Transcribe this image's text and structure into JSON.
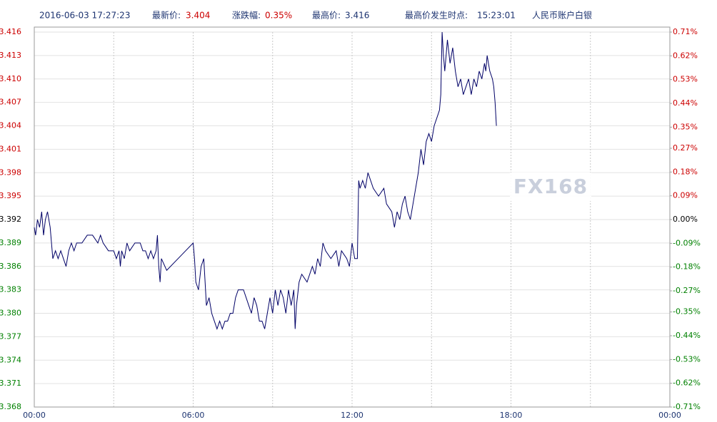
{
  "chart_data": {
    "type": "line",
    "header": {
      "timestamp": "2016-06-03 17:27:23",
      "latest_label": "最新价:",
      "latest_value": "3.404",
      "change_label": "涨跌幅:",
      "change_value": "0.35%",
      "high_label": "最高价:",
      "high_value": "3.416",
      "high_time_label": "最高价发生时点:",
      "high_time_value": "15:23:01",
      "instrument": "人民币账户白银"
    },
    "watermark": "FX168",
    "xlim": [
      0,
      24
    ],
    "xticks": [
      {
        "value": 0,
        "label": "00:00"
      },
      {
        "value": 3,
        "label": null
      },
      {
        "value": 6,
        "label": "06:00"
      },
      {
        "value": 9,
        "label": null
      },
      {
        "value": 12,
        "label": "12:00"
      },
      {
        "value": 15,
        "label": null
      },
      {
        "value": 18,
        "label": "18:00"
      },
      {
        "value": 21,
        "label": null
      },
      {
        "value": 24,
        "label": "00:00"
      }
    ],
    "ylim": [
      3.368,
      3.416
    ],
    "yticks": [
      3.368,
      3.371,
      3.374,
      3.377,
      {
        "value": 3.38,
        "label": "3.380"
      },
      3.383,
      3.386,
      3.389,
      3.392,
      3.395,
      3.398,
      3.401,
      3.404,
      3.407,
      {
        "value": 3.41,
        "label": "3.410"
      },
      3.413,
      3.416
    ],
    "y2lim": [
      -0.71,
      0.71
    ],
    "y2ticks": [
      {
        "value": -0.71,
        "label": "-0.71%"
      },
      {
        "value": -0.62,
        "label": "-0.62%"
      },
      {
        "value": -0.53,
        "label": "-0.53%"
      },
      {
        "value": -0.44,
        "label": "-0.44%"
      },
      {
        "value": -0.35,
        "label": "-0.35%"
      },
      {
        "value": -0.27,
        "label": "-0.27%"
      },
      {
        "value": -0.18,
        "label": "-0.18%"
      },
      {
        "value": -0.09,
        "label": "-0.09%"
      },
      {
        "value": 0,
        "label": "0.00%"
      },
      {
        "value": 0.09,
        "label": "0.09%"
      },
      {
        "value": 0.18,
        "label": "0.18%"
      },
      {
        "value": 0.27,
        "label": "0.27%"
      },
      {
        "value": 0.35,
        "label": "0.35%"
      },
      {
        "value": 0.44,
        "label": "0.44%"
      },
      {
        "value": 0.53,
        "label": "0.53%"
      },
      {
        "value": 0.62,
        "label": "0.62%"
      },
      {
        "value": 0.71,
        "label": "0.71%"
      }
    ],
    "grid": true,
    "up_color": "#cc0000",
    "down_color": "#008000",
    "line_color": "#000066",
    "x": [
      0,
      0.05,
      0.12,
      0.2,
      0.28,
      0.35,
      0.42,
      0.5,
      0.6,
      0.65,
      0.7,
      0.8,
      0.9,
      1.0,
      1.1,
      1.2,
      1.3,
      1.4,
      1.5,
      1.6,
      1.8,
      2.0,
      2.2,
      2.4,
      2.5,
      2.6,
      2.8,
      3.0,
      3.1,
      3.2,
      3.25,
      3.3,
      3.4,
      3.5,
      3.6,
      3.8,
      4.0,
      4.1,
      4.2,
      4.3,
      4.4,
      4.5,
      4.6,
      4.65,
      4.7,
      4.75,
      4.8,
      5.0,
      6.0,
      6.05,
      6.1,
      6.2,
      6.3,
      6.4,
      6.45,
      6.5,
      6.6,
      6.7,
      6.8,
      6.9,
      7.0,
      7.1,
      7.2,
      7.3,
      7.4,
      7.5,
      7.6,
      7.7,
      7.9,
      8.0,
      8.1,
      8.2,
      8.3,
      8.4,
      8.5,
      8.6,
      8.7,
      8.8,
      8.9,
      9.0,
      9.1,
      9.2,
      9.3,
      9.4,
      9.5,
      9.6,
      9.7,
      9.8,
      9.85,
      9.9,
      10.0,
      10.1,
      10.3,
      10.5,
      10.6,
      10.7,
      10.8,
      10.9,
      11.0,
      11.2,
      11.4,
      11.5,
      11.6,
      11.8,
      11.9,
      12.0,
      12.1,
      12.2,
      12.25,
      12.3,
      12.4,
      12.5,
      12.6,
      12.8,
      13.0,
      13.2,
      13.3,
      13.5,
      13.6,
      13.7,
      13.8,
      13.9,
      14.0,
      14.1,
      14.2,
      14.3,
      14.4,
      14.5,
      14.6,
      14.7,
      14.8,
      14.9,
      15.0,
      15.1,
      15.2,
      15.3,
      15.35,
      15.4,
      15.45,
      15.5,
      15.6,
      15.7,
      15.8,
      15.9,
      16.0,
      16.1,
      16.2,
      16.3,
      16.4,
      16.5,
      16.6,
      16.7,
      16.8,
      16.9,
      17.0,
      17.05,
      17.1,
      17.2,
      17.3,
      17.35,
      17.4,
      17.45
    ],
    "values": [
      3.391,
      3.39,
      3.392,
      3.391,
      3.393,
      3.39,
      3.392,
      3.393,
      3.391,
      3.389,
      3.387,
      3.388,
      3.387,
      3.388,
      3.387,
      3.386,
      3.388,
      3.389,
      3.388,
      3.389,
      3.389,
      3.39,
      3.39,
      3.389,
      3.39,
      3.389,
      3.388,
      3.388,
      3.387,
      3.388,
      3.386,
      3.388,
      3.387,
      3.389,
      3.388,
      3.389,
      3.389,
      3.388,
      3.388,
      3.387,
      3.388,
      3.387,
      3.388,
      3.39,
      3.386,
      3.384,
      3.387,
      3.3855,
      3.389,
      3.387,
      3.384,
      3.383,
      3.386,
      3.387,
      3.384,
      3.381,
      3.382,
      3.38,
      3.379,
      3.378,
      3.379,
      3.378,
      3.379,
      3.379,
      3.38,
      3.38,
      3.382,
      3.383,
      3.383,
      3.382,
      3.381,
      3.38,
      3.382,
      3.381,
      3.379,
      3.379,
      3.378,
      3.38,
      3.382,
      3.38,
      3.383,
      3.381,
      3.383,
      3.382,
      3.38,
      3.383,
      3.381,
      3.383,
      3.378,
      3.381,
      3.384,
      3.385,
      3.384,
      3.386,
      3.385,
      3.387,
      3.386,
      3.389,
      3.388,
      3.387,
      3.388,
      3.386,
      3.388,
      3.387,
      3.386,
      3.389,
      3.387,
      3.387,
      3.397,
      3.396,
      3.397,
      3.396,
      3.398,
      3.396,
      3.395,
      3.396,
      3.394,
      3.393,
      3.391,
      3.393,
      3.392,
      3.394,
      3.395,
      3.393,
      3.392,
      3.394,
      3.396,
      3.398,
      3.401,
      3.399,
      3.402,
      3.403,
      3.402,
      3.404,
      3.405,
      3.406,
      3.408,
      3.416,
      3.413,
      3.411,
      3.415,
      3.412,
      3.414,
      3.411,
      3.409,
      3.41,
      3.408,
      3.409,
      3.41,
      3.408,
      3.41,
      3.409,
      3.411,
      3.41,
      3.412,
      3.411,
      3.413,
      3.411,
      3.41,
      3.409,
      3.407,
      3.404
    ]
  }
}
